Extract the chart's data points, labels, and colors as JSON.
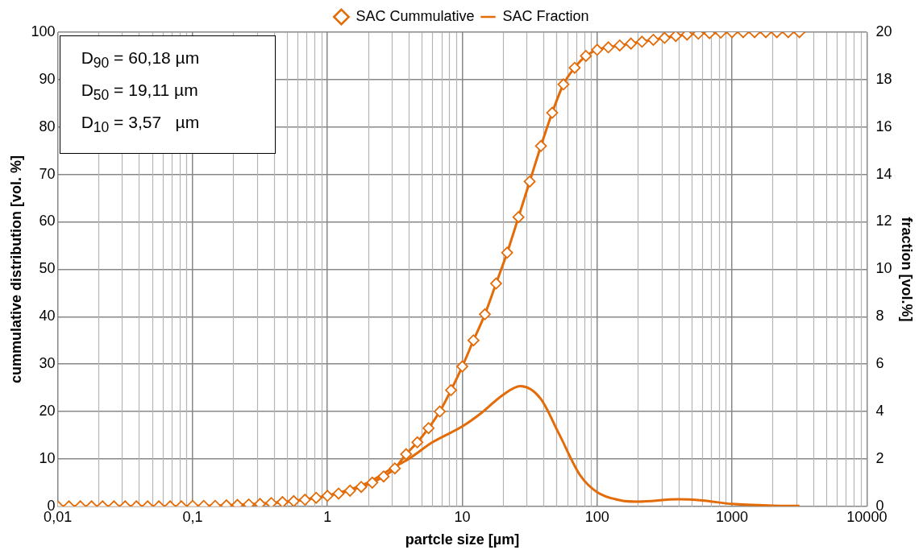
{
  "chart_data": {
    "type": "line",
    "xlabel": "partcle size [µm]",
    "ylabel": "cummulative distribution [vol. %]",
    "y2label": "fraction [vol.%]",
    "log": "x",
    "grid": true,
    "legend": "top",
    "xlim": [
      0.01,
      10000
    ],
    "xticks": [
      {
        "value": 0.01,
        "label": "0,01"
      },
      {
        "value": 0.1,
        "label": "0,1"
      },
      1,
      10,
      100,
      1000,
      10000
    ],
    "ylim": [
      0,
      100
    ],
    "yticks": [
      0,
      10,
      20,
      30,
      40,
      50,
      60,
      70,
      80,
      90,
      100
    ],
    "y2lim": [
      0,
      20
    ],
    "y2ticks": [
      0,
      2,
      4,
      6,
      8,
      10,
      12,
      14,
      16,
      18,
      20
    ],
    "annotations": [
      "D$_{90}$ = 60,18 µm",
      "D$_{50}$ = 19,11 µm",
      "D$_{10}$ = 3,57   µm"
    ],
    "series": [
      {
        "name": "SAC Cummulative",
        "color": "#e36c09",
        "marker": "diamond",
        "x": [
          0.01,
          0.0121,
          0.0147,
          0.0178,
          0.0215,
          0.0261,
          0.0316,
          0.0383,
          0.0464,
          0.0562,
          0.0681,
          0.0825,
          0.1,
          0.121,
          0.147,
          0.178,
          0.215,
          0.261,
          0.316,
          0.383,
          0.464,
          0.562,
          0.681,
          0.825,
          1,
          1.21,
          1.47,
          1.78,
          2.15,
          2.61,
          3.16,
          3.83,
          4.64,
          5.62,
          6.81,
          8.25,
          10,
          12.1,
          14.7,
          17.8,
          21.5,
          26.1,
          31.6,
          38.3,
          46.4,
          56.2,
          68.1,
          82.5,
          100,
          121,
          147,
          178,
          215,
          261,
          316,
          383,
          464,
          562,
          681,
          825,
          1000,
          1210,
          1470,
          1780,
          2150,
          2610,
          3160
        ],
        "values": [
          0,
          0,
          0,
          0,
          0,
          0,
          0,
          0,
          0,
          0,
          0,
          0,
          0.1,
          0.1,
          0.1,
          0.2,
          0.3,
          0.4,
          0.5,
          0.7,
          0.9,
          1.1,
          1.4,
          1.8,
          2.2,
          2.7,
          3.3,
          4.1,
          5,
          6.3,
          8,
          11,
          13.5,
          16.5,
          20,
          24.5,
          29.5,
          35,
          40.5,
          47,
          53.5,
          61,
          68.5,
          76,
          83,
          89,
          92.5,
          95,
          96.3,
          96.8,
          97.2,
          97.6,
          98,
          98.4,
          98.8,
          99.2,
          99.5,
          99.7,
          99.8,
          99.9,
          100,
          100,
          100,
          100,
          100,
          100,
          100
        ]
      },
      {
        "name": "SAC Fraction",
        "color": "#e36c09",
        "axis": "y2",
        "marker": "none",
        "x": [
          0.01,
          0.1,
          0.3,
          0.5,
          1,
          2,
          3,
          4,
          6,
          10,
          14,
          20,
          27,
          38,
          52,
          75,
          100,
          150,
          200,
          400,
          600,
          1000,
          2000,
          3160
        ],
        "values": [
          0,
          0,
          0.1,
          0.2,
          0.45,
          1,
          1.6,
          2,
          2.7,
          3.37,
          3.96,
          4.7,
          5.07,
          4.55,
          3.07,
          1.3,
          0.6,
          0.25,
          0.2,
          0.3,
          0.25,
          0.1,
          0.03,
          0.02
        ]
      }
    ]
  }
}
